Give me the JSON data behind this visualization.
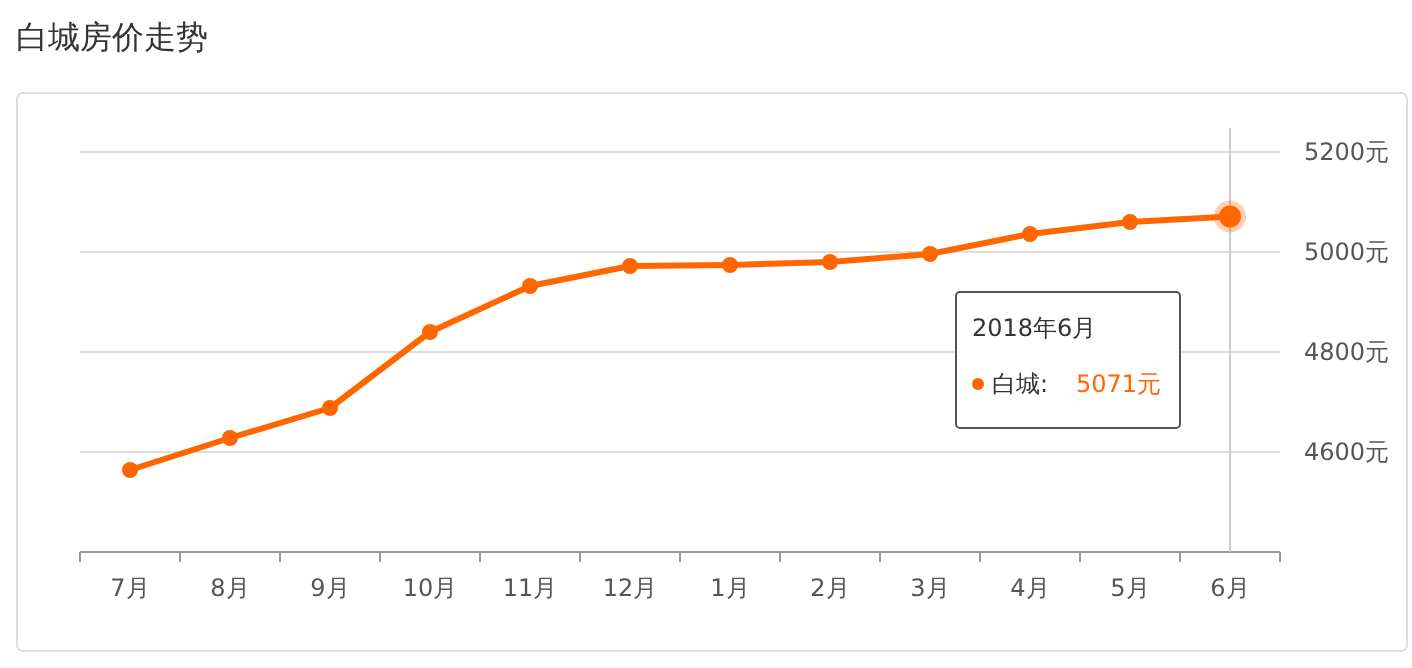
{
  "chart_data": {
    "type": "line",
    "title": "白城房价走势",
    "categories": [
      "7月",
      "8月",
      "9月",
      "10月",
      "11月",
      "12月",
      "1月",
      "2月",
      "3月",
      "4月",
      "5月",
      "6月"
    ],
    "series": [
      {
        "color": "#ff6600",
        "values": [
          4564,
          4628,
          4688,
          4840,
          4932,
          4972,
          4974,
          4980,
          4996,
          5036,
          5060,
          5071
        ]
      }
    ],
    "ylim": [
      4400,
      5200
    ],
    "yticks": [
      {
        "value": 4600,
        "label": "4600元"
      },
      {
        "value": 4800,
        "label": "4800元"
      },
      {
        "value": 5000,
        "label": "5000元"
      },
      {
        "value": 5200,
        "label": "5200元"
      }
    ],
    "grid": "y",
    "marker": "circle",
    "line_style": "solid",
    "ref_lines": [
      {
        "axis": "x",
        "value": "6月",
        "label": null,
        "color": "#cccccc"
      }
    ],
    "annotations": [
      "2018年6月",
      "白城:",
      "5071元"
    ]
  }
}
